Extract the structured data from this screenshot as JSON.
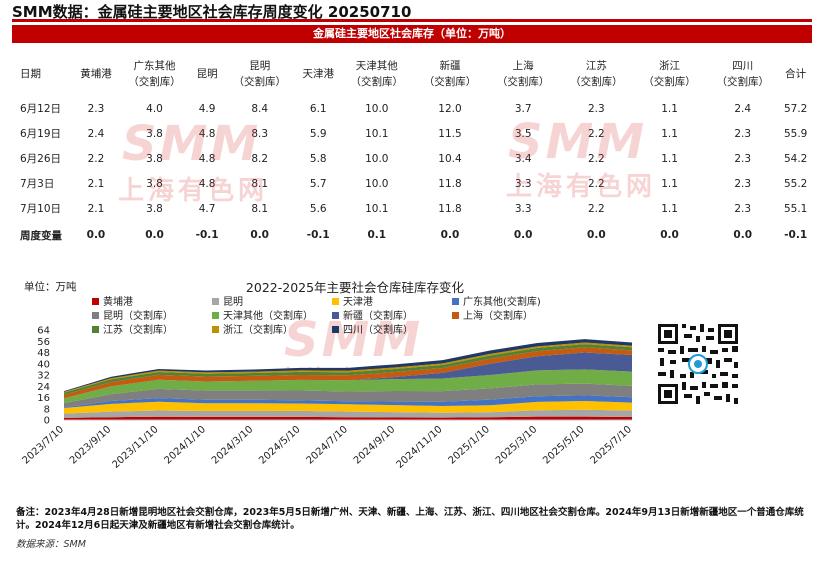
{
  "page_title": "SMM数据：金属硅主要地区社会库存周度变化 20250710",
  "table": {
    "banner": "金属硅主要地区社会库存（单位：万吨）",
    "headers": [
      [
        "日期"
      ],
      [
        "黄埔港"
      ],
      [
        "广东其他",
        "（交割库）"
      ],
      [
        "昆明"
      ],
      [
        "昆明",
        "（交割库）"
      ],
      [
        "天津港"
      ],
      [
        "天津其他",
        "（交割库）"
      ],
      [
        "新疆",
        "（交割库）"
      ],
      [
        "上海",
        "（交割库）"
      ],
      [
        "江苏",
        "（交割库）"
      ],
      [
        "浙江",
        "（交割库）"
      ],
      [
        "四川",
        "（交割库）"
      ],
      [
        "合计"
      ]
    ],
    "rows": [
      [
        "6月12日",
        "2.3",
        "4.0",
        "4.9",
        "8.4",
        "6.1",
        "10.0",
        "12.0",
        "3.7",
        "2.3",
        "1.1",
        "2.4",
        "57.2"
      ],
      [
        "6月19日",
        "2.4",
        "3.8",
        "4.8",
        "8.3",
        "5.9",
        "10.1",
        "11.5",
        "3.5",
        "2.2",
        "1.1",
        "2.3",
        "55.9"
      ],
      [
        "6月26日",
        "2.2",
        "3.8",
        "4.8",
        "8.2",
        "5.8",
        "10.0",
        "10.4",
        "3.4",
        "2.2",
        "1.1",
        "2.3",
        "54.2"
      ],
      [
        "7月3日",
        "2.1",
        "3.8",
        "4.8",
        "8.1",
        "5.7",
        "10.0",
        "11.8",
        "3.3",
        "2.2",
        "1.1",
        "2.3",
        "55.2"
      ],
      [
        "7月10日",
        "2.1",
        "3.8",
        "4.7",
        "8.1",
        "5.6",
        "10.1",
        "11.8",
        "3.3",
        "2.2",
        "1.1",
        "2.3",
        "55.1"
      ]
    ],
    "weekly_change": [
      "周度变量",
      "0.0",
      "0.0",
      "-0.1",
      "0.0",
      "-0.1",
      "0.1",
      "0.0",
      "0.0",
      "0.0",
      "0.0",
      "0.0",
      "-0.1"
    ]
  },
  "watermark": {
    "logo": "SMM",
    "cn": "上海有色网"
  },
  "chart_data": {
    "type": "area",
    "title": "2022-2025年主要社会仓库硅库存变化",
    "unit_label": "单位：万吨",
    "ylim": [
      0,
      64
    ],
    "yticks": [
      0,
      8,
      16,
      24,
      32,
      40,
      48,
      56,
      64
    ],
    "x": [
      "2023/7/10",
      "2023/9/10",
      "2023/11/10",
      "2024/1/10",
      "2024/3/10",
      "2024/5/10",
      "2024/7/10",
      "2024/9/10",
      "2024/11/10",
      "2025/1/10",
      "2025/3/10",
      "2025/5/10",
      "2025/7/10"
    ],
    "legend_position": "top",
    "grid": false,
    "series": [
      {
        "name": "黄埔港",
        "color": "#c00000",
        "values": [
          1.5,
          2.0,
          2.3,
          2.2,
          2.2,
          2.2,
          2.0,
          1.8,
          1.7,
          2.0,
          2.4,
          2.4,
          2.1
        ]
      },
      {
        "name": "昆明",
        "color": "#a6a6a6",
        "values": [
          3.0,
          4.0,
          4.5,
          4.2,
          4.2,
          4.3,
          4.0,
          3.8,
          3.5,
          3.5,
          4.5,
          4.9,
          4.7
        ]
      },
      {
        "name": "天津港",
        "color": "#ffc000",
        "values": [
          4.0,
          5.5,
          6.2,
          5.5,
          5.5,
          5.2,
          5.2,
          5.0,
          4.8,
          5.0,
          6.0,
          6.2,
          5.6
        ]
      },
      {
        "name": "广东其他(交割库)",
        "color": "#4472c4",
        "values": [
          0.5,
          2.0,
          2.6,
          2.5,
          2.5,
          2.3,
          2.1,
          2.5,
          3.0,
          4.0,
          4.0,
          4.0,
          3.8
        ]
      },
      {
        "name": "昆明（交割库）",
        "color": "#7f7f7f",
        "values": [
          3.0,
          5.0,
          6.5,
          6.5,
          6.5,
          7.0,
          7.0,
          7.5,
          7.5,
          8.0,
          8.4,
          8.4,
          8.1
        ]
      },
      {
        "name": "天津其他（交割库）",
        "color": "#70ad47",
        "values": [
          3.5,
          5.5,
          6.5,
          6.5,
          7.0,
          7.5,
          8.0,
          8.5,
          9.0,
          9.5,
          10.0,
          10.1,
          10.1
        ]
      },
      {
        "name": "新疆（交割库）",
        "color": "#4a5a94",
        "values": [
          0.0,
          0.0,
          0.0,
          0.0,
          0.0,
          0.0,
          0.0,
          1.5,
          4.0,
          8.0,
          10.0,
          12.0,
          11.8
        ]
      },
      {
        "name": "上海（交割库）",
        "color": "#c55a11",
        "values": [
          2.5,
          3.0,
          3.5,
          3.5,
          3.5,
          3.5,
          3.5,
          3.5,
          3.5,
          3.6,
          3.7,
          3.7,
          3.3
        ]
      },
      {
        "name": "江苏（交割库）",
        "color": "#548235",
        "values": [
          1.5,
          2.0,
          2.0,
          2.0,
          2.0,
          2.2,
          2.2,
          2.2,
          2.2,
          2.3,
          2.3,
          2.3,
          2.2
        ]
      },
      {
        "name": "浙江（交割库）",
        "color": "#bf9000",
        "values": [
          0.5,
          0.8,
          1.0,
          1.0,
          1.0,
          1.1,
          1.1,
          1.1,
          1.1,
          1.1,
          1.1,
          1.1,
          1.1
        ]
      },
      {
        "name": "四川（交割库）",
        "color": "#203864",
        "values": [
          0.5,
          1.0,
          1.2,
          1.3,
          1.5,
          1.8,
          2.0,
          2.2,
          2.3,
          2.4,
          2.4,
          2.4,
          2.3
        ]
      }
    ]
  },
  "footnote": "备注：2023年4月28日新增昆明地区社会交割仓库，2023年5月5日新增广州、天津、新疆、上海、江苏、浙江、四川地区社会交割仓库。2024年9月13日新增新疆地区一个普通仓库统计。2024年12月6日起天津及新疆地区有新增社会交割仓库统计。",
  "source": "数据来源：SMM"
}
